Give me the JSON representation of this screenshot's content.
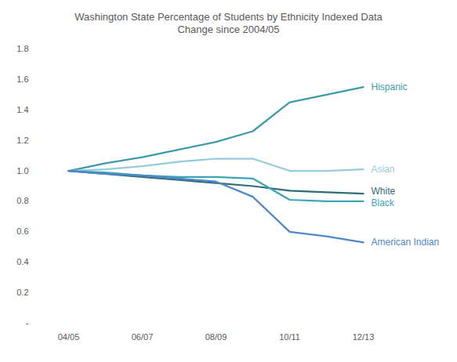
{
  "chart_data": {
    "type": "line",
    "title": "Washington State Percentage of Students by Ethnicity Indexed Data",
    "subtitle": "Change since 2004/05",
    "categories": [
      "04/05",
      null,
      "06/07",
      null,
      "08/09",
      null,
      "10/11",
      null,
      "12/13"
    ],
    "series": [
      {
        "name": "Hispanic",
        "color": "#3d9ba8",
        "values": [
          1.0,
          1.05,
          1.09,
          1.14,
          1.19,
          1.26,
          1.45,
          1.5,
          1.55
        ]
      },
      {
        "name": "Asian",
        "color": "#93cbd8",
        "values": [
          1.0,
          1.01,
          1.03,
          1.06,
          1.08,
          1.08,
          1.0,
          1.0,
          1.01
        ]
      },
      {
        "name": "White",
        "color": "#2e6e78",
        "values": [
          1.0,
          0.98,
          0.96,
          0.94,
          0.92,
          0.9,
          0.87,
          0.86,
          0.85
        ]
      },
      {
        "name": "Black",
        "color": "#3aa6b4",
        "values": [
          1.0,
          0.99,
          0.97,
          0.96,
          0.96,
          0.95,
          0.81,
          0.8,
          0.8
        ]
      },
      {
        "name": "American Indian",
        "color": "#4f87c8",
        "values": [
          1.0,
          0.98,
          0.97,
          0.95,
          0.93,
          0.83,
          0.6,
          0.57,
          0.53
        ]
      }
    ],
    "ylim": [
      0,
      1.8
    ],
    "yticks": [
      {
        "value": 0,
        "label": "-"
      },
      0.2,
      0.4,
      0.6,
      0.8,
      {
        "value": 1,
        "label": "1.0"
      },
      1.2,
      1.4,
      1.6,
      1.8
    ],
    "grid": false
  }
}
